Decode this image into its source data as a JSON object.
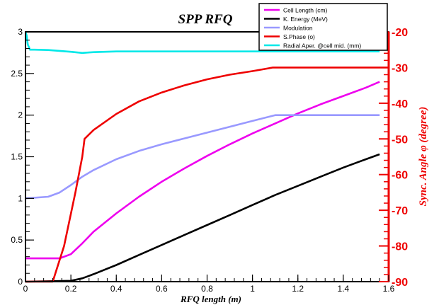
{
  "chart_data": {
    "type": "line",
    "title": "SPP RFQ",
    "xlabel": "RFQ length (m)",
    "ylabel": "",
    "ylabel_right": "Sync. Angle φ (degree)",
    "xlim": [
      0,
      1.6
    ],
    "ylim": [
      0,
      3
    ],
    "ylim_right": [
      -90,
      -20
    ],
    "x_ticks": [
      "0",
      "0.2",
      "0.4",
      "0.6",
      "0.8",
      "1",
      "1.2",
      "1.4",
      "1.6"
    ],
    "y_ticks": [
      "0",
      "0.5",
      "1",
      "1.5",
      "2",
      "2.5",
      "3"
    ],
    "y_right_ticks": [
      "-90",
      "-80",
      "-70",
      "-60",
      "-50",
      "-40",
      "-30",
      "-20"
    ],
    "grid": false,
    "legend_position": "top-right",
    "series": [
      {
        "name": "Cell Length (cm)",
        "color": "#ee00ee",
        "axis": "left",
        "x": [
          0,
          0.15,
          0.2,
          0.25,
          0.3,
          0.4,
          0.5,
          0.6,
          0.7,
          0.8,
          0.9,
          1.0,
          1.1,
          1.2,
          1.3,
          1.4,
          1.5,
          1.56
        ],
        "y": [
          0.28,
          0.28,
          0.33,
          0.46,
          0.6,
          0.82,
          1.02,
          1.2,
          1.36,
          1.51,
          1.65,
          1.78,
          1.9,
          2.02,
          2.13,
          2.23,
          2.33,
          2.4
        ]
      },
      {
        "name": "K. Energy (MeV)",
        "color": "#000000",
        "axis": "left",
        "x": [
          0,
          0.2,
          0.25,
          0.3,
          0.4,
          0.5,
          0.6,
          0.7,
          0.8,
          0.9,
          1.0,
          1.1,
          1.2,
          1.3,
          1.4,
          1.5,
          1.56
        ],
        "y": [
          0,
          0.01,
          0.04,
          0.09,
          0.2,
          0.32,
          0.44,
          0.56,
          0.68,
          0.8,
          0.92,
          1.04,
          1.15,
          1.26,
          1.37,
          1.47,
          1.53
        ]
      },
      {
        "name": "Modulation",
        "color": "#9999ff",
        "axis": "left",
        "x": [
          0,
          0.1,
          0.15,
          0.2,
          0.25,
          0.3,
          0.4,
          0.5,
          0.6,
          0.7,
          0.8,
          0.9,
          1.0,
          1.1,
          1.2,
          1.3,
          1.4,
          1.5,
          1.56
        ],
        "y": [
          1.0,
          1.02,
          1.07,
          1.16,
          1.26,
          1.34,
          1.47,
          1.57,
          1.65,
          1.72,
          1.79,
          1.86,
          1.93,
          2.0,
          2.0,
          2.0,
          2.0,
          2.0,
          2.0
        ]
      },
      {
        "name": "S.Phase (o)",
        "color": "#ee0000",
        "axis": "right",
        "x": [
          0,
          0.12,
          0.17,
          0.22,
          0.25,
          0.26,
          0.3,
          0.4,
          0.5,
          0.6,
          0.7,
          0.8,
          0.9,
          1.0,
          1.09,
          1.2,
          1.4,
          1.6
        ],
        "y": [
          -90,
          -90,
          -80,
          -65,
          -55,
          -50,
          -47.5,
          -43,
          -39.5,
          -37,
          -35,
          -33.3,
          -32,
          -31,
          -30,
          -30,
          -30,
          -30
        ]
      },
      {
        "name": "Radial Aper. @cell mid. (mm)",
        "color": "#00e8e8",
        "axis": "right",
        "x": [
          0,
          0.005,
          0.01,
          0.02,
          0.04,
          0.1,
          0.2,
          0.25,
          0.3,
          0.4,
          0.6,
          0.8,
          1.0,
          1.2,
          1.4,
          1.56
        ],
        "y": [
          -20,
          -21,
          -23.5,
          -25,
          -25,
          -25.1,
          -25.6,
          -25.9,
          -25.7,
          -25.5,
          -25.5,
          -25.5,
          -25.5,
          -25.5,
          -25.5,
          -25.5
        ]
      }
    ]
  }
}
